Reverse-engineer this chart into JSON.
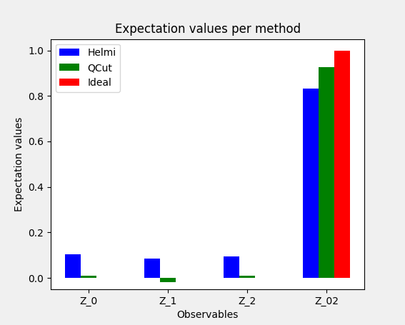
{
  "title": "Expectation values per method",
  "xlabel": "Observables",
  "ylabel": "Expectation values",
  "categories": [
    "Z_0",
    "Z_1",
    "Z_2",
    "Z_02"
  ],
  "series": [
    {
      "label": "Helmi",
      "color": "#0000ff",
      "values": [
        0.105,
        0.085,
        0.095,
        0.831
      ]
    },
    {
      "label": "QCut",
      "color": "#008000",
      "values": [
        0.01,
        -0.02,
        0.008,
        0.925
      ]
    },
    {
      "label": "Ideal",
      "color": "#ff0000",
      "values": [
        0.0,
        0.0,
        0.0,
        1.0
      ]
    }
  ],
  "ylim": [
    -0.05,
    1.05
  ],
  "bar_width": 0.2,
  "figsize": [
    5.67,
    4.55
  ],
  "dpi": 100,
  "figure_facecolor": "#f0f0f0",
  "axes_facecolor": "#ffffff"
}
